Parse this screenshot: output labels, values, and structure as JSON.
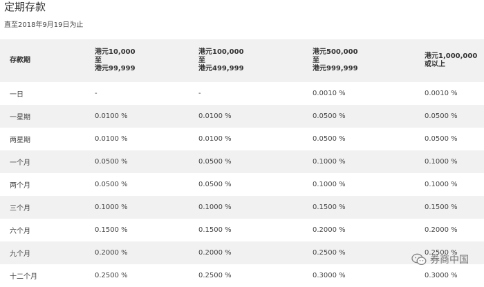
{
  "title": "定期存款",
  "subtitle": "直至2018年9月19日为止",
  "table": {
    "headers": [
      [
        "存款期"
      ],
      [
        "港元10,000",
        "至",
        "港元99,999"
      ],
      [
        "港元100,000",
        "至",
        "港元499,999"
      ],
      [
        "港元500,000",
        "至",
        "港元999,999"
      ],
      [
        "港元1,000,000",
        "或以上"
      ]
    ],
    "rows": [
      [
        "一日",
        "-",
        "-",
        "0.0010 %",
        "0.0010 %"
      ],
      [
        "一星期",
        "0.0100 %",
        "0.0100 %",
        "0.0500 %",
        "0.0500 %"
      ],
      [
        "两星期",
        "0.0100 %",
        "0.0100 %",
        "0.0500 %",
        "0.0500 %"
      ],
      [
        "一个月",
        "0.0500 %",
        "0.0500 %",
        "0.1000 %",
        "0.1000 %"
      ],
      [
        "两个月",
        "0.0500 %",
        "0.0500 %",
        "0.1000 %",
        "0.1000 %"
      ],
      [
        "三个月",
        "0.1000 %",
        "0.1000 %",
        "0.1500 %",
        "0.1500 %"
      ],
      [
        "六个月",
        "0.1500 %",
        "0.1500 %",
        "0.2000 %",
        "0.2000 %"
      ],
      [
        "九个月",
        "0.2000 %",
        "0.2000 %",
        "0.2500 %",
        "0.2500 %"
      ],
      [
        "十二个月",
        "0.2500 %",
        "0.2500 %",
        "0.3000 %",
        "0.3000 %"
      ]
    ]
  },
  "watermark": {
    "text": "券商中国",
    "icon": "wechat-icon"
  }
}
